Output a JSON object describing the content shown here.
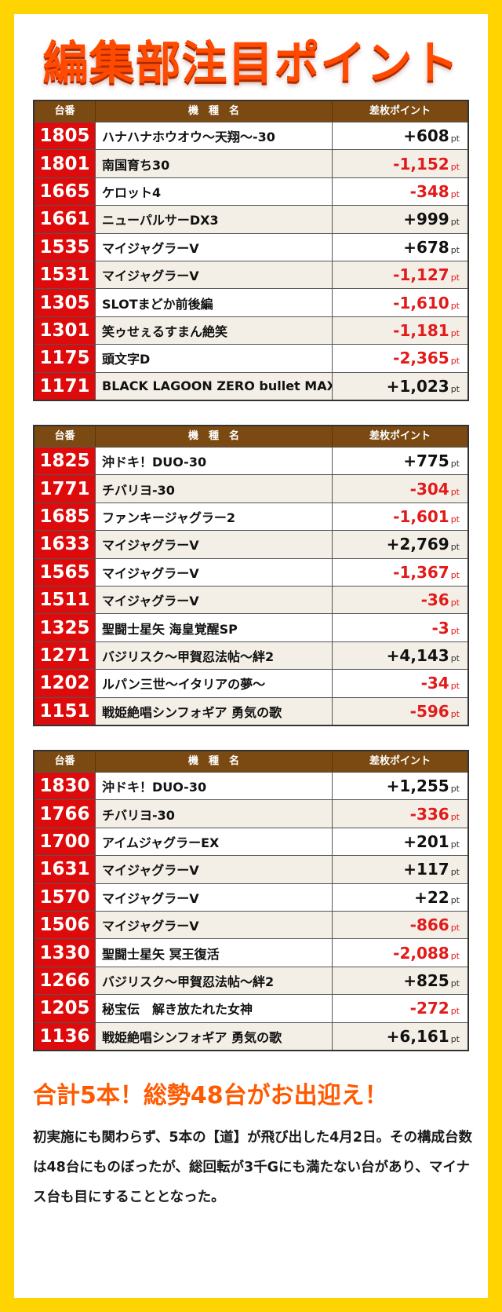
{
  "title": "編集部注目ポイント",
  "table_headers": {
    "machine_no": "台番",
    "machine_name": "機　種　名",
    "points": "差枚ポイント"
  },
  "unit": "pt",
  "tables": [
    {
      "rows": [
        {
          "no": "1805",
          "name": "ハナハナホウオウ〜天翔〜-30",
          "value": "+608"
        },
        {
          "no": "1801",
          "name": "南国育ち30",
          "value": "-1,152"
        },
        {
          "no": "1665",
          "name": "ケロット4",
          "value": "-348"
        },
        {
          "no": "1661",
          "name": "ニューパルサーDX3",
          "value": "+999"
        },
        {
          "no": "1535",
          "name": "マイジャグラーV",
          "value": "+678"
        },
        {
          "no": "1531",
          "name": "マイジャグラーV",
          "value": "-1,127"
        },
        {
          "no": "1305",
          "name": "SLOTまどか前後編",
          "value": "-1,610"
        },
        {
          "no": "1301",
          "name": "笑ゥせぇるすまん絶笑",
          "value": "-1,181"
        },
        {
          "no": "1175",
          "name": "頭文字D",
          "value": "-2,365"
        },
        {
          "no": "1171",
          "name": "BLACK LAGOON ZERO bullet MAX",
          "value": "+1,023"
        }
      ]
    },
    {
      "rows": [
        {
          "no": "1825",
          "name": "沖ドキ！DUO-30",
          "value": "+775"
        },
        {
          "no": "1771",
          "name": "チバリヨ-30",
          "value": "-304"
        },
        {
          "no": "1685",
          "name": "ファンキージャグラー2",
          "value": "-1,601"
        },
        {
          "no": "1633",
          "name": "マイジャグラーV",
          "value": "+2,769"
        },
        {
          "no": "1565",
          "name": "マイジャグラーV",
          "value": "-1,367"
        },
        {
          "no": "1511",
          "name": "マイジャグラーV",
          "value": "-36"
        },
        {
          "no": "1325",
          "name": "聖闘士星矢 海皇覚醒SP",
          "value": "-3"
        },
        {
          "no": "1271",
          "name": "バジリスク〜甲賀忍法帖〜絆2",
          "value": "+4,143"
        },
        {
          "no": "1202",
          "name": "ルパン三世〜イタリアの夢〜",
          "value": "-34"
        },
        {
          "no": "1151",
          "name": "戦姫絶唱シンフォギア 勇気の歌",
          "value": "-596"
        }
      ]
    },
    {
      "rows": [
        {
          "no": "1830",
          "name": "沖ドキ！DUO-30",
          "value": "+1,255"
        },
        {
          "no": "1766",
          "name": "チバリヨ-30",
          "value": "-336"
        },
        {
          "no": "1700",
          "name": "アイムジャグラーEX",
          "value": "+201"
        },
        {
          "no": "1631",
          "name": "マイジャグラーV",
          "value": "+117"
        },
        {
          "no": "1570",
          "name": "マイジャグラーV",
          "value": "+22"
        },
        {
          "no": "1506",
          "name": "マイジャグラーV",
          "value": "-866"
        },
        {
          "no": "1330",
          "name": "聖闘士星矢 冥王復活",
          "value": "-2,088"
        },
        {
          "no": "1266",
          "name": "バジリスク〜甲賀忍法帖〜絆2",
          "value": "+825"
        },
        {
          "no": "1205",
          "name": "秘宝伝　解き放たれた女神",
          "value": "-272"
        },
        {
          "no": "1136",
          "name": "戦姫絶唱シンフォギア 勇気の歌",
          "value": "+6,161"
        }
      ]
    }
  ],
  "headline": "合計5本！総勢48台がお出迎え！",
  "body": "初実施にも関わらず、5本の【道】が飛び出した4月2日。その構成台数は48台にものぼったが、総回転が3千Gにも満たない台があり、マイナス台も目にすることとなった。",
  "colors": {
    "background": "#ffd400",
    "title": "#ff4a00",
    "header": "#7b4a12",
    "number_cell": "#dd0b0b",
    "negative": "#e21a1a"
  }
}
